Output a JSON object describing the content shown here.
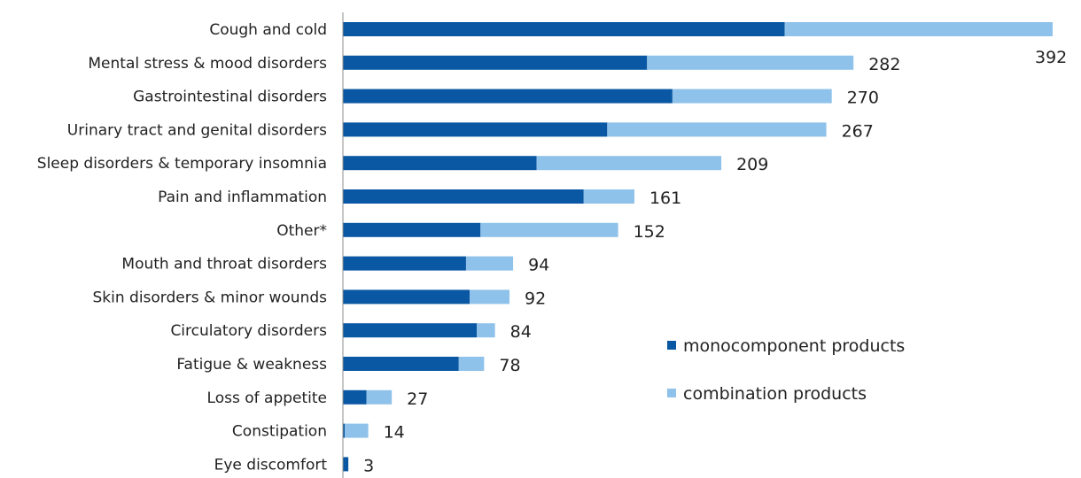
{
  "chart_data": {
    "type": "bar",
    "orientation": "horizontal",
    "stacked": true,
    "categories": [
      "Cough and cold",
      "Mental stress & mood disorders",
      "Gastrointestinal disorders",
      "Urinary tract and genital disorders",
      "Sleep disorders & temporary insomnia",
      "Pain and inflammation",
      "Other*",
      "Mouth and throat disorders",
      "Skin disorders & minor wounds",
      "Circulatory disorders",
      "Fatigue & weakness",
      "Loss of appetite",
      "Constipation",
      "Eye discomfort"
    ],
    "series": [
      {
        "name": "monocomponent products",
        "color": "#0a58a3",
        "values": [
          244,
          168,
          182,
          146,
          107,
          133,
          76,
          68,
          70,
          74,
          64,
          13,
          1,
          3
        ]
      },
      {
        "name": "combination products",
        "color": "#8fc2ea",
        "values": [
          148,
          114,
          88,
          121,
          102,
          28,
          76,
          26,
          22,
          10,
          14,
          14,
          13,
          0
        ]
      }
    ],
    "totals": [
      "392",
      "282",
      "270",
      "267",
      "209",
      "161",
      "152",
      "94",
      "92",
      "84",
      "78",
      "27",
      "14",
      "3"
    ],
    "xlim": [
      0,
      392
    ],
    "grid": false,
    "legend_position": "right"
  }
}
